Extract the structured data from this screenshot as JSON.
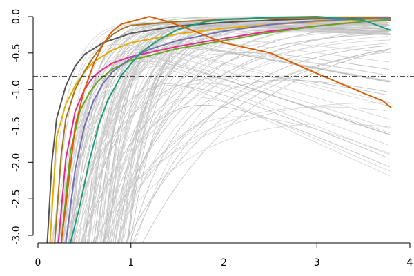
{
  "chart_data": {
    "type": "line",
    "title": "",
    "xlabel": "",
    "ylabel": "",
    "xlim": [
      0,
      4
    ],
    "ylim": [
      -3.0,
      0.0
    ],
    "grid": false,
    "legend": "none",
    "x_ticks": [
      0,
      1,
      2,
      3,
      4
    ],
    "x_tick_labels": [
      "0",
      "1",
      "2",
      "3",
      "4"
    ],
    "y_ticks": [
      0.0,
      -0.5,
      -1.0,
      -1.5,
      -2.0,
      -2.5,
      -3.0
    ],
    "y_tick_labels": [
      "0.0",
      "-0.5",
      "-1.0",
      "-1.5",
      "-2.0",
      "-2.5",
      "-3.0"
    ],
    "reference_lines": {
      "vertical_x": 2,
      "horizontal_y": -0.82
    },
    "background_curves": {
      "color": "#cfcfcf",
      "count": 120,
      "x_range": [
        0.05,
        3.8
      ]
    },
    "series": [
      {
        "color": "#555555",
        "x": [
          0.1,
          0.15,
          0.2,
          0.3,
          0.4,
          0.5,
          0.7,
          1.0,
          1.5,
          2.0,
          2.5,
          3.0,
          3.5,
          3.8
        ],
        "y": [
          -3.1,
          -2.0,
          -1.4,
          -0.95,
          -0.68,
          -0.52,
          -0.36,
          -0.23,
          -0.13,
          -0.08,
          -0.05,
          -0.03,
          -0.02,
          -0.015
        ]
      },
      {
        "color": "#E6AB02",
        "x": [
          0.13,
          0.2,
          0.3,
          0.4,
          0.5,
          0.6,
          0.8,
          1.0,
          1.5,
          2.0,
          2.5,
          3.0,
          3.5,
          3.8
        ],
        "y": [
          -3.1,
          -1.65,
          -1.2,
          -0.95,
          -0.76,
          -0.62,
          -0.46,
          -0.36,
          -0.24,
          -0.16,
          -0.11,
          -0.07,
          -0.04,
          -0.03
        ]
      },
      {
        "color": "#A6761D",
        "x": [
          0.18,
          0.25,
          0.3,
          0.4,
          0.5,
          0.6,
          0.7,
          0.8,
          0.9,
          1.0,
          1.5,
          2.0,
          2.5,
          3.0,
          3.5,
          3.8
        ],
        "y": [
          -3.1,
          -1.9,
          -1.4,
          -1.0,
          -0.75,
          -0.55,
          -0.38,
          -0.25,
          -0.17,
          -0.12,
          -0.07,
          -0.04,
          -0.02,
          -0.015,
          -0.01,
          -0.01
        ]
      },
      {
        "color": "#E7298A",
        "x": [
          0.22,
          0.3,
          0.4,
          0.5,
          0.6,
          0.7,
          0.8,
          1.0,
          1.5,
          2.0,
          2.5,
          3.0,
          3.5,
          3.8
        ],
        "y": [
          -3.1,
          -1.95,
          -1.3,
          -1.0,
          -0.82,
          -0.72,
          -0.64,
          -0.55,
          -0.41,
          -0.3,
          -0.2,
          -0.13,
          -0.07,
          -0.05
        ]
      },
      {
        "color": "#66A61E",
        "x": [
          0.25,
          0.35,
          0.45,
          0.55,
          0.65,
          0.8,
          1.0,
          1.5,
          2.0,
          2.5,
          3.0,
          3.5,
          3.8
        ],
        "y": [
          -3.1,
          -1.85,
          -1.3,
          -1.05,
          -0.88,
          -0.72,
          -0.6,
          -0.44,
          -0.33,
          -0.22,
          -0.13,
          -0.07,
          -0.04
        ]
      },
      {
        "color": "#7570B3",
        "x": [
          0.3,
          0.4,
          0.5,
          0.6,
          0.7,
          0.8,
          1.0,
          1.2,
          1.5,
          2.0,
          2.5,
          3.0,
          3.5,
          3.8
        ],
        "y": [
          -3.1,
          -2.1,
          -1.5,
          -1.15,
          -0.92,
          -0.76,
          -0.57,
          -0.45,
          -0.33,
          -0.2,
          -0.11,
          -0.06,
          -0.03,
          -0.02
        ]
      },
      {
        "color": "#1B9E77",
        "x": [
          0.35,
          0.45,
          0.55,
          0.65,
          0.75,
          0.9,
          1.1,
          1.3,
          1.5,
          1.8,
          2.0,
          2.5,
          3.0,
          3.5,
          3.8
        ],
        "y": [
          -3.1,
          -2.6,
          -2.0,
          -1.5,
          -1.15,
          -0.8,
          -0.5,
          -0.32,
          -0.18,
          -0.07,
          -0.04,
          -0.01,
          0.0,
          -0.05,
          -0.19
        ]
      },
      {
        "color": "#D95F02",
        "x": [
          0.25,
          0.3,
          0.4,
          0.5,
          0.6,
          0.7,
          0.8,
          0.9,
          1.0,
          1.2,
          1.4,
          1.6,
          1.8,
          2.0,
          2.5,
          3.0,
          3.5,
          3.7,
          3.8
        ],
        "y": [
          -3.1,
          -2.6,
          -1.5,
          -1.0,
          -0.65,
          -0.38,
          -0.2,
          -0.1,
          -0.07,
          0.0,
          -0.07,
          -0.16,
          -0.26,
          -0.36,
          -0.5,
          -0.78,
          -1.05,
          -1.15,
          -1.25
        ]
      }
    ]
  }
}
